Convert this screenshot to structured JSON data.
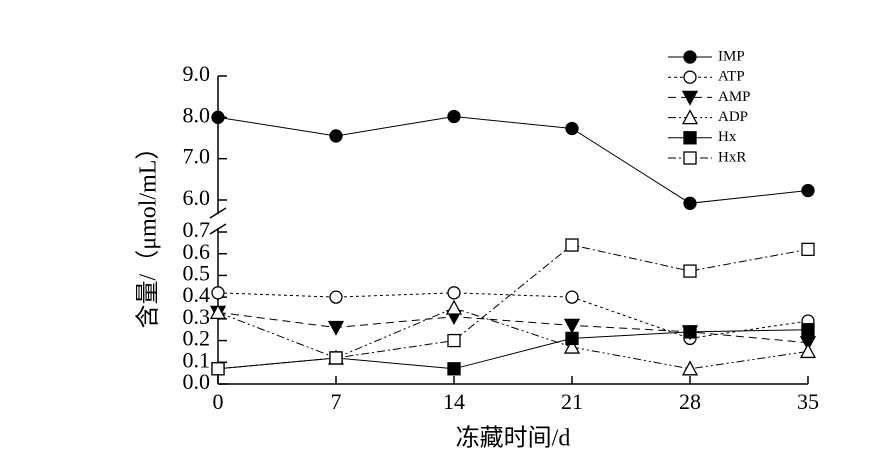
{
  "chart_data": {
    "type": "line",
    "x_label": "冻藏时间/d",
    "y_label": "含量/（μmol/mL）",
    "x": [
      0,
      7,
      14,
      21,
      28,
      35
    ],
    "xlim": [
      0,
      35
    ],
    "xticks": [
      0,
      7,
      14,
      21,
      28,
      35
    ],
    "ylim": [
      0,
      0.7
    ],
    "yticks": [
      {
        "value": 0,
        "label": "0.0"
      },
      0.1,
      0.2,
      0.3,
      0.4,
      0.5,
      0.6,
      0.7
    ],
    "ylim_upper": [
      6,
      9
    ],
    "yticks_upper": [
      {
        "value": 6,
        "label": "6.0"
      },
      {
        "value": 7,
        "label": "7.0"
      },
      {
        "value": 8,
        "label": "8.0"
      },
      {
        "value": 9,
        "label": "9.0"
      }
    ],
    "legend": "upper right",
    "series": [
      {
        "name": "IMP",
        "color": "#000000",
        "marker": "circle",
        "filled": true,
        "dash": "",
        "axis": "upper",
        "values": [
          8.0,
          7.55,
          8.02,
          7.73,
          5.92,
          6.23
        ]
      },
      {
        "name": "ATP",
        "color": "#000000",
        "marker": "circle",
        "filled": false,
        "dash": "3 3",
        "values": [
          0.42,
          0.4,
          0.42,
          0.4,
          0.21,
          0.29
        ]
      },
      {
        "name": "AMP",
        "color": "#000000",
        "marker": "triangle-down",
        "filled": true,
        "dash": "8 5",
        "values": [
          0.33,
          0.26,
          0.31,
          0.27,
          0.24,
          0.19
        ]
      },
      {
        "name": "ADP",
        "color": "#000000",
        "marker": "triangle-up",
        "filled": false,
        "dash": "8 3 2 3 2 3",
        "values": [
          0.33,
          0.12,
          0.35,
          0.17,
          0.07,
          0.15
        ]
      },
      {
        "name": "Hx",
        "color": "#000000",
        "marker": "square",
        "filled": true,
        "dash": "",
        "values": [
          0.07,
          0.12,
          0.07,
          0.21,
          0.24,
          0.25
        ]
      },
      {
        "name": "HxR",
        "color": "#000000",
        "marker": "square",
        "filled": false,
        "dash": "8 3 2 3",
        "values": [
          0.07,
          0.12,
          0.2,
          0.64,
          0.52,
          0.62
        ]
      }
    ]
  }
}
